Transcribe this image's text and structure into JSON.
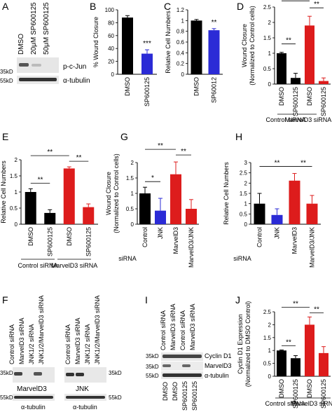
{
  "panel_letters": {
    "A": "A",
    "B": "B",
    "C": "C",
    "D": "D",
    "E": "E",
    "F": "F",
    "G": "G",
    "H": "H",
    "I": "I",
    "J": "J"
  },
  "panel_a": {
    "lanes": [
      "DMSO",
      "20μM SP600125",
      "50μM SP600125"
    ],
    "mw_top": "35kD",
    "mw_bottom": "55kD",
    "band_top": "p-c-Jun",
    "band_bottom": "α-tubulin"
  },
  "panel_f": {
    "lanes_left": [
      "Control siRNA",
      "MarvelD3 siRNA",
      "JNK1/2 siRNA",
      "JNK1/2/MarvelD3 siRNA"
    ],
    "lanes_right": [
      "Control siRNA",
      "MarvelD3 siRNA",
      "JNK1/2 siRNA",
      "JNK1/2/MarvelD3 siRNA"
    ],
    "mw_left_top": "35kD",
    "mw_left_bottom": "55kD",
    "mw_right_top": "35kD",
    "mw_right_bottom": "55kD",
    "blot_left": "MarvelD3",
    "blot_right": "JNK",
    "tub_left": "α-tubulin",
    "tub_right": "α-tubulin"
  },
  "panel_i": {
    "lanes": [
      "Control siRNA",
      "MarvelD3 siRNA",
      "Control siRNA",
      "MarvelD3 siRNA"
    ],
    "bottom": [
      "DMSO",
      "DMSO",
      "SP600125",
      "SP600125"
    ],
    "mw": [
      "35kD",
      "35kD",
      "55kD"
    ],
    "bands": [
      "Cyclin D1",
      "MarvelD3",
      "α-tubulin"
    ]
  },
  "group_labels": {
    "control_sirna": "Control siRNA",
    "marveld3_sirna": "MarvelD3 siRNA",
    "sirna": "siRNA"
  },
  "chart_data": [
    {
      "panel": "B",
      "type": "bar",
      "categories": [
        "DMSO",
        "SP600125"
      ],
      "values": [
        88,
        32
      ],
      "errors": [
        3,
        6
      ],
      "colors": [
        "#000000",
        "#2b2bd6"
      ],
      "ylabel": "% Wound Closure",
      "ylim": [
        0,
        100
      ],
      "yticks": [
        0,
        20,
        40,
        60,
        80,
        100
      ],
      "significance": [
        "***"
      ]
    },
    {
      "panel": "C",
      "type": "bar",
      "categories": [
        "DMSO",
        "SP60012"
      ],
      "values": [
        1.0,
        0.82
      ],
      "errors": [
        0.02,
        0.03
      ],
      "colors": [
        "#000000",
        "#2b2bd6"
      ],
      "ylabel": "Relative Cell Numbers",
      "ylim": [
        0,
        1.2
      ],
      "yticks": [
        0,
        0.2,
        0.4,
        0.6,
        0.8,
        1.0,
        1.2
      ],
      "significance": [
        "**"
      ]
    },
    {
      "panel": "D",
      "type": "bar",
      "categories": [
        "DMSO",
        "SP600125",
        "DMSO",
        "SP600125"
      ],
      "values": [
        1.0,
        0.2,
        1.9,
        0.1
      ],
      "errors": [
        0.03,
        0.15,
        0.3,
        0.1
      ],
      "colors": [
        "#000000",
        "#000000",
        "#dd1c1c",
        "#dd1c1c"
      ],
      "ylabel": "Wound Closure\n(Normalized to Control cells)",
      "ylim": [
        0,
        2.5
      ],
      "yticks": [
        0,
        0.5,
        1,
        1.5,
        2,
        2.5
      ],
      "significance": [
        "*",
        "**",
        "**"
      ]
    },
    {
      "panel": "E",
      "type": "bar",
      "categories": [
        "DMSO",
        "SP600125",
        "DMSO",
        "SP600125"
      ],
      "values": [
        1.0,
        0.35,
        1.73,
        0.53
      ],
      "errors": [
        0.1,
        0.1,
        0.05,
        0.1
      ],
      "colors": [
        "#000000",
        "#000000",
        "#dd1c1c",
        "#dd1c1c"
      ],
      "ylabel": "Relative Cell Numbers",
      "ylim": [
        0,
        2
      ],
      "yticks": [
        0,
        0.5,
        1,
        1.5,
        2
      ],
      "significance": [
        "**",
        "**",
        "**"
      ]
    },
    {
      "panel": "G",
      "type": "bar",
      "categories": [
        "Control",
        "JNK",
        "MarvelD3",
        "MarvelD3/JNK"
      ],
      "values": [
        1.0,
        0.44,
        1.62,
        0.5
      ],
      "errors": [
        0.2,
        0.4,
        0.4,
        0.3
      ],
      "colors": [
        "#000000",
        "#2b2bd6",
        "#dd1c1c",
        "#dd1c1c"
      ],
      "ylabel": "Wound Closure\n(Normalized to Control cells)",
      "ylim": [
        0,
        2
      ],
      "yticks": [
        0,
        0.5,
        1,
        1.5,
        2
      ],
      "significance": [
        "**",
        "*",
        "**"
      ]
    },
    {
      "panel": "H",
      "type": "bar",
      "categories": [
        "Control",
        "JNK",
        "MarvelD3",
        "MarvelD3/JNK"
      ],
      "values": [
        1.0,
        0.45,
        2.12,
        1.0
      ],
      "errors": [
        0.5,
        0.3,
        0.35,
        0.4
      ],
      "colors": [
        "#000000",
        "#2b2bd6",
        "#dd1c1c",
        "#dd1c1c"
      ],
      "ylabel": "Relative Cell Numbers",
      "ylim": [
        0,
        3
      ],
      "yticks": [
        0,
        0.5,
        1,
        1.5,
        2,
        2.5,
        3
      ],
      "significance": [
        "**",
        "**"
      ]
    },
    {
      "panel": "J",
      "type": "bar",
      "categories": [
        "DMSO",
        "SP600125",
        "DMSO",
        "SP600125"
      ],
      "values": [
        1.0,
        0.7,
        2.0,
        0.9
      ],
      "errors": [
        0.02,
        0.1,
        0.3,
        0.25
      ],
      "colors": [
        "#000000",
        "#000000",
        "#dd1c1c",
        "#dd1c1c"
      ],
      "ylabel": "Cyclin D1 Expression\n(Normalized to DMSO Control)",
      "ylim": [
        0,
        2.5
      ],
      "yticks": [
        0,
        0.5,
        1,
        1.5,
        2,
        2.5
      ],
      "significance": [
        "**",
        "**",
        "**"
      ]
    }
  ]
}
